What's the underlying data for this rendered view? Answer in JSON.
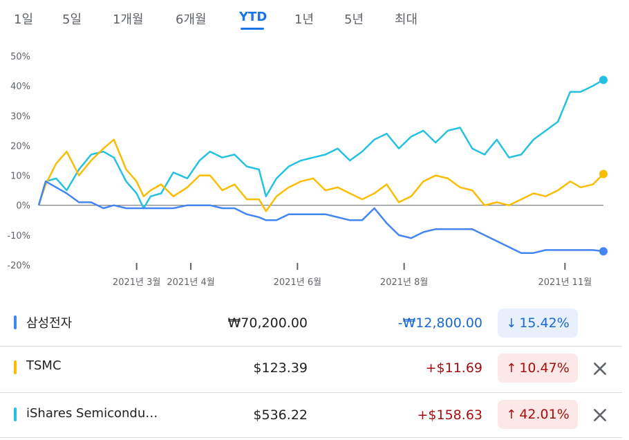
{
  "tabs": [
    {
      "label": "1일",
      "active": false
    },
    {
      "label": "5일",
      "active": false
    },
    {
      "label": "1개월",
      "active": false
    },
    {
      "label": "6개월",
      "active": false
    },
    {
      "label": "YTD",
      "active": true
    },
    {
      "label": "1년",
      "active": false
    },
    {
      "label": "5년",
      "active": false
    },
    {
      "label": "최대",
      "active": false
    }
  ],
  "chart_data": {
    "type": "line",
    "ylim": [
      -20,
      50
    ],
    "y_ticks": [
      "50%",
      "40%",
      "30%",
      "20%",
      "10%",
      "0%",
      "-10%",
      "-20%"
    ],
    "x_ticks": [
      "2021년 3월",
      "2021년 4월",
      "2021년 6월",
      "2021년 8월",
      "2021년 11월"
    ],
    "x_tick_dates": [
      "2021-03-01",
      "2021-04-01",
      "2021-06-01",
      "2021-08-01",
      "2021-11-01"
    ],
    "x_range": [
      "2021-01-04",
      "2021-11-23"
    ],
    "series": [
      {
        "name": "iShares Semiconductor",
        "color": "#24c1e0",
        "points": [
          [
            "2021-01-04",
            0
          ],
          [
            "2021-01-08",
            8
          ],
          [
            "2021-01-14",
            9
          ],
          [
            "2021-01-20",
            5
          ],
          [
            "2021-01-27",
            12
          ],
          [
            "2021-02-03",
            17
          ],
          [
            "2021-02-10",
            18
          ],
          [
            "2021-02-16",
            16
          ],
          [
            "2021-02-23",
            8
          ],
          [
            "2021-03-01",
            4
          ],
          [
            "2021-03-05",
            -1
          ],
          [
            "2021-03-09",
            3
          ],
          [
            "2021-03-15",
            4
          ],
          [
            "2021-03-22",
            11
          ],
          [
            "2021-03-30",
            9
          ],
          [
            "2021-04-06",
            15
          ],
          [
            "2021-04-12",
            18
          ],
          [
            "2021-04-19",
            16
          ],
          [
            "2021-04-26",
            17
          ],
          [
            "2021-05-03",
            13
          ],
          [
            "2021-05-10",
            12
          ],
          [
            "2021-05-14",
            3
          ],
          [
            "2021-05-20",
            9
          ],
          [
            "2021-05-27",
            13
          ],
          [
            "2021-06-03",
            15
          ],
          [
            "2021-06-10",
            16
          ],
          [
            "2021-06-17",
            17
          ],
          [
            "2021-06-24",
            19
          ],
          [
            "2021-07-01",
            15
          ],
          [
            "2021-07-08",
            18
          ],
          [
            "2021-07-15",
            22
          ],
          [
            "2021-07-22",
            24
          ],
          [
            "2021-07-29",
            19
          ],
          [
            "2021-08-05",
            23
          ],
          [
            "2021-08-12",
            25
          ],
          [
            "2021-08-19",
            21
          ],
          [
            "2021-08-26",
            25
          ],
          [
            "2021-09-02",
            26
          ],
          [
            "2021-09-09",
            19
          ],
          [
            "2021-09-16",
            17
          ],
          [
            "2021-09-23",
            22
          ],
          [
            "2021-09-30",
            16
          ],
          [
            "2021-10-07",
            17
          ],
          [
            "2021-10-14",
            22
          ],
          [
            "2021-10-21",
            25
          ],
          [
            "2021-10-28",
            28
          ],
          [
            "2021-11-04",
            38
          ],
          [
            "2021-11-10",
            38
          ],
          [
            "2021-11-17",
            40
          ],
          [
            "2021-11-23",
            42
          ]
        ]
      },
      {
        "name": "TSMC",
        "color": "#fbbc04",
        "points": [
          [
            "2021-01-04",
            0
          ],
          [
            "2021-01-08",
            7
          ],
          [
            "2021-01-14",
            14
          ],
          [
            "2021-01-20",
            18
          ],
          [
            "2021-01-27",
            10
          ],
          [
            "2021-02-03",
            15
          ],
          [
            "2021-02-10",
            19
          ],
          [
            "2021-02-16",
            22
          ],
          [
            "2021-02-23",
            12
          ],
          [
            "2021-03-01",
            8
          ],
          [
            "2021-03-05",
            3
          ],
          [
            "2021-03-09",
            5
          ],
          [
            "2021-03-15",
            7
          ],
          [
            "2021-03-22",
            3
          ],
          [
            "2021-03-30",
            6
          ],
          [
            "2021-04-06",
            10
          ],
          [
            "2021-04-12",
            10
          ],
          [
            "2021-04-19",
            5
          ],
          [
            "2021-04-26",
            7
          ],
          [
            "2021-05-03",
            2
          ],
          [
            "2021-05-10",
            2
          ],
          [
            "2021-05-14",
            -2
          ],
          [
            "2021-05-20",
            3
          ],
          [
            "2021-05-27",
            6
          ],
          [
            "2021-06-03",
            8
          ],
          [
            "2021-06-10",
            9
          ],
          [
            "2021-06-17",
            5
          ],
          [
            "2021-06-24",
            6
          ],
          [
            "2021-07-01",
            4
          ],
          [
            "2021-07-08",
            2
          ],
          [
            "2021-07-15",
            4
          ],
          [
            "2021-07-22",
            7
          ],
          [
            "2021-07-29",
            1
          ],
          [
            "2021-08-05",
            3
          ],
          [
            "2021-08-12",
            8
          ],
          [
            "2021-08-19",
            10
          ],
          [
            "2021-08-26",
            9
          ],
          [
            "2021-09-02",
            6
          ],
          [
            "2021-09-09",
            5
          ],
          [
            "2021-09-16",
            0
          ],
          [
            "2021-09-23",
            1
          ],
          [
            "2021-09-30",
            0
          ],
          [
            "2021-10-07",
            2
          ],
          [
            "2021-10-14",
            4
          ],
          [
            "2021-10-21",
            3
          ],
          [
            "2021-10-28",
            5
          ],
          [
            "2021-11-04",
            8
          ],
          [
            "2021-11-10",
            6
          ],
          [
            "2021-11-17",
            7
          ],
          [
            "2021-11-23",
            10.47
          ]
        ]
      },
      {
        "name": "삼성전자",
        "color": "#4285f4",
        "points": [
          [
            "2021-01-04",
            0
          ],
          [
            "2021-01-08",
            8
          ],
          [
            "2021-01-14",
            6
          ],
          [
            "2021-01-20",
            4
          ],
          [
            "2021-01-27",
            1
          ],
          [
            "2021-02-03",
            1
          ],
          [
            "2021-02-10",
            -1
          ],
          [
            "2021-02-16",
            0
          ],
          [
            "2021-02-23",
            -1
          ],
          [
            "2021-03-01",
            -1
          ],
          [
            "2021-03-05",
            -1
          ],
          [
            "2021-03-09",
            -1
          ],
          [
            "2021-03-15",
            -1
          ],
          [
            "2021-03-22",
            -1
          ],
          [
            "2021-03-30",
            0
          ],
          [
            "2021-04-06",
            0
          ],
          [
            "2021-04-12",
            0
          ],
          [
            "2021-04-19",
            -1
          ],
          [
            "2021-04-26",
            -1
          ],
          [
            "2021-05-03",
            -3
          ],
          [
            "2021-05-10",
            -4
          ],
          [
            "2021-05-14",
            -5
          ],
          [
            "2021-05-20",
            -5
          ],
          [
            "2021-05-27",
            -3
          ],
          [
            "2021-06-03",
            -3
          ],
          [
            "2021-06-10",
            -3
          ],
          [
            "2021-06-17",
            -3
          ],
          [
            "2021-06-24",
            -4
          ],
          [
            "2021-07-01",
            -5
          ],
          [
            "2021-07-08",
            -5
          ],
          [
            "2021-07-15",
            -1
          ],
          [
            "2021-07-22",
            -6
          ],
          [
            "2021-07-29",
            -10
          ],
          [
            "2021-08-05",
            -11
          ],
          [
            "2021-08-12",
            -9
          ],
          [
            "2021-08-19",
            -8
          ],
          [
            "2021-08-26",
            -8
          ],
          [
            "2021-09-02",
            -8
          ],
          [
            "2021-09-09",
            -8
          ],
          [
            "2021-09-16",
            -10
          ],
          [
            "2021-09-23",
            -12
          ],
          [
            "2021-09-30",
            -14
          ],
          [
            "2021-10-07",
            -16
          ],
          [
            "2021-10-14",
            -16
          ],
          [
            "2021-10-21",
            -15
          ],
          [
            "2021-10-28",
            -15
          ],
          [
            "2021-11-04",
            -15
          ],
          [
            "2021-11-10",
            -15
          ],
          [
            "2021-11-17",
            -15
          ],
          [
            "2021-11-23",
            -15.42
          ]
        ]
      }
    ]
  },
  "rows": [
    {
      "name": "삼성전자",
      "color": "#4285f4",
      "price": "₩70,200.00",
      "change": "-₩12,800.00",
      "change_dir": "down",
      "pct": "15.42%",
      "arrow": "↓",
      "removable": false
    },
    {
      "name": "TSMC",
      "color": "#fbbc04",
      "price": "$123.39",
      "change": "+$11.69",
      "change_dir": "up",
      "pct": "10.47%",
      "arrow": "↑",
      "removable": true
    },
    {
      "name": "iShares Semicondu…",
      "color": "#24c1e0",
      "price": "$536.22",
      "change": "+$158.63",
      "change_dir": "up",
      "pct": "42.01%",
      "arrow": "↑",
      "removable": true
    }
  ],
  "icons": {
    "close": "close-icon"
  }
}
